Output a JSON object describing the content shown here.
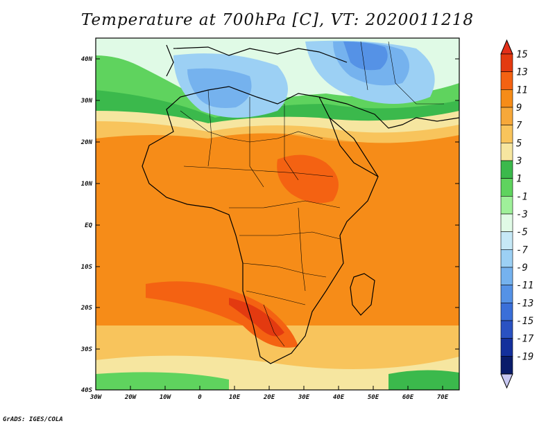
{
  "title": "Temperature at 700hPa [C], VT: 2020011218",
  "credit": "GrADS: IGES/COLA",
  "map": {
    "lat_ticks": [
      "40N",
      "30N",
      "20N",
      "10N",
      "EQ",
      "10S",
      "20S",
      "30S",
      "40S"
    ],
    "lon_ticks": [
      "30W",
      "20W",
      "10W",
      "0",
      "10E",
      "20E",
      "30E",
      "40E",
      "50E",
      "60E",
      "70E"
    ]
  },
  "colorbar": {
    "levels": [
      "15",
      "13",
      "11",
      "9",
      "7",
      "5",
      "3",
      "1",
      "-1",
      "-3",
      "-5",
      "-7",
      "-9",
      "-11",
      "-13",
      "-15",
      "-17",
      "-19"
    ],
    "colors": [
      "#e33a10",
      "#f46212",
      "#f68c18",
      "#f6a83a",
      "#f8c45c",
      "#f6e6a0",
      "#3bb94c",
      "#5fd35e",
      "#9ff09a",
      "#e0fae6",
      "#c6e8f6",
      "#9cd0f4",
      "#75b2ee",
      "#5592e6",
      "#3a6fd8",
      "#2a52c2",
      "#14309c",
      "#0a1c6a"
    ],
    "top_color": "#e3301a",
    "bottom_color": "#c8c8f2"
  }
}
